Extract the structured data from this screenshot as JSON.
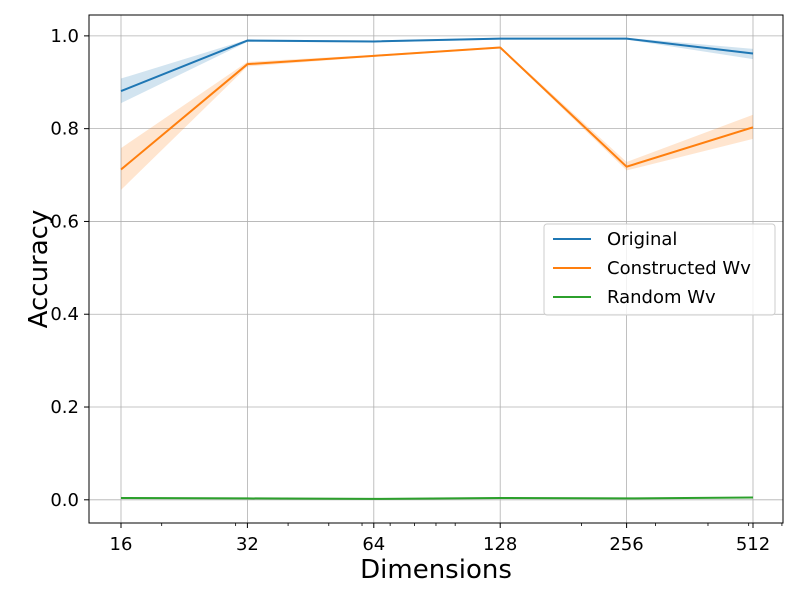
{
  "chart_data": {
    "type": "line",
    "title": "",
    "xlabel": "Dimensions",
    "ylabel": "Accuracy",
    "x_scale": "log2",
    "x": [
      16,
      32,
      64,
      128,
      256,
      512
    ],
    "x_tick_labels": [
      "16",
      "32",
      "64",
      "128",
      "256",
      "512"
    ],
    "y_ticks": [
      0.0,
      0.2,
      0.4,
      0.6,
      0.8,
      1.0
    ],
    "y_tick_labels": [
      "0.0",
      "0.2",
      "0.4",
      "0.6",
      "0.8",
      "1.0"
    ],
    "ylim": [
      -0.05,
      1.045
    ],
    "grid": true,
    "legend_position": "center-right",
    "series": [
      {
        "name": "Original",
        "color": "#1f77b4",
        "values": [
          0.881,
          0.99,
          0.988,
          0.994,
          0.994,
          0.962
        ],
        "lower": [
          0.855,
          0.987,
          0.986,
          0.992,
          0.992,
          0.95
        ],
        "upper": [
          0.908,
          0.992,
          0.99,
          0.996,
          0.996,
          0.972
        ]
      },
      {
        "name": "Constructed Wv",
        "color": "#ff7f0e",
        "values": [
          0.712,
          0.939,
          0.957,
          0.975,
          0.718,
          0.803
        ],
        "lower": [
          0.668,
          0.934,
          0.955,
          0.973,
          0.71,
          0.778
        ],
        "upper": [
          0.758,
          0.944,
          0.959,
          0.977,
          0.728,
          0.83
        ]
      },
      {
        "name": "Random Wv",
        "color": "#2ca02c",
        "values": [
          0.004,
          0.003,
          0.002,
          0.004,
          0.003,
          0.005
        ],
        "lower": [
          0.002,
          0.002,
          0.001,
          0.003,
          0.002,
          0.004
        ],
        "upper": [
          0.006,
          0.004,
          0.003,
          0.005,
          0.004,
          0.006
        ]
      }
    ]
  }
}
